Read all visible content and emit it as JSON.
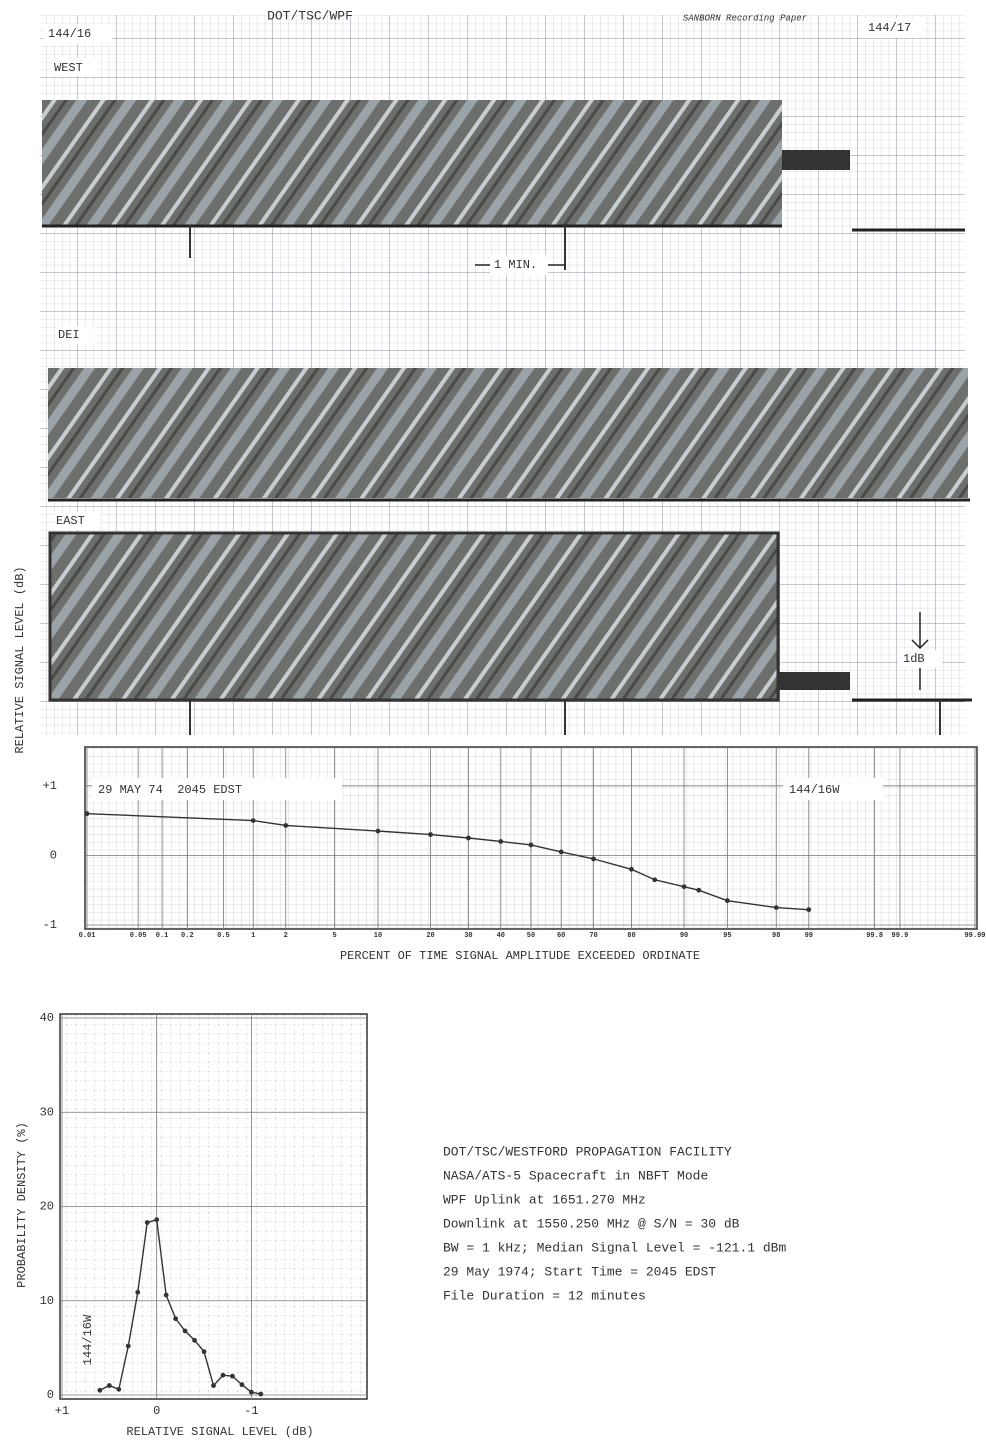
{
  "recording": {
    "header": "DOT/TSC/WPF",
    "paper": "SANBORN Recording Paper",
    "start": "144/16",
    "end": "144/17",
    "channels": [
      "WEST",
      "DEI",
      "EAST"
    ],
    "time_scale": "1 MIN.",
    "level_scale": "1dB"
  },
  "chart_data": [
    {
      "type": "line",
      "xscale": "probability",
      "xlabel": "PERCENT OF TIME SIGNAL AMPLITUDE EXCEEDED ORDINATE",
      "ylabel": "RELATIVE SIGNAL LEVEL (dB)",
      "annotations": [
        "29 MAY 74  2045 EDST",
        "144/16W"
      ],
      "x": [
        0.01,
        1,
        2,
        10,
        20,
        30,
        40,
        50,
        60,
        70,
        80,
        85,
        90,
        92,
        95,
        98,
        99
      ],
      "values": [
        0.6,
        0.5,
        0.43,
        0.35,
        0.3,
        0.25,
        0.2,
        0.15,
        0.05,
        -0.05,
        -0.2,
        -0.35,
        -0.45,
        -0.5,
        -0.65,
        -0.75,
        -0.78
      ],
      "color": "#333333",
      "xlim": [
        0.01,
        99.99
      ],
      "xticks": [
        0.01,
        0.05,
        0.1,
        0.2,
        0.5,
        1,
        2,
        5,
        10,
        20,
        30,
        40,
        50,
        60,
        70,
        80,
        90,
        95,
        98,
        99,
        99.8,
        99.9,
        99.99
      ],
      "ylim": [
        -1,
        1.5
      ],
      "yticks": [
        -1,
        0,
        {
          "value": 1,
          "label": "+1"
        }
      ],
      "grid": true
    },
    {
      "type": "line",
      "xscale": "linear",
      "xlabel": "RELATIVE SIGNAL LEVEL (dB)",
      "ylabel": "PROBABILITY DENSITY (%)",
      "annotations": [
        "144/16W"
      ],
      "x": [
        0.6,
        0.5,
        0.4,
        0.3,
        0.2,
        0.1,
        0,
        -0.1,
        -0.2,
        -0.3,
        -0.4,
        -0.5,
        -0.6,
        -0.7,
        -0.8,
        -0.9,
        -1,
        -1.1
      ],
      "values": [
        0.5,
        1.0,
        0.6,
        5.2,
        10.9,
        18.3,
        18.6,
        10.6,
        8.1,
        6.8,
        5.8,
        4.6,
        1.0,
        2.1,
        2.0,
        1.1,
        0.3,
        0.1
      ],
      "color": "#333333",
      "xlim": [
        1,
        -2.2
      ],
      "xticks": [
        {
          "value": 1,
          "label": "+1"
        },
        0,
        -1
      ],
      "ylim": [
        0,
        40
      ],
      "yticks": [
        0,
        10,
        20,
        30,
        40
      ],
      "grid": true
    }
  ],
  "notes": [
    "DOT/TSC/WESTFORD PROPAGATION FACILITY",
    "NASA/ATS-5 Spacecraft in NBFT Mode",
    "WPF Uplink at 1651.270 MHz",
    "Downlink at 1550.250 MHz @ S/N = 30 dB",
    "BW = 1 kHz; Median Signal Level = -121.1 dBm",
    "29 May 1974; Start Time = 2045 EDST",
    "File Duration = 12 minutes"
  ]
}
